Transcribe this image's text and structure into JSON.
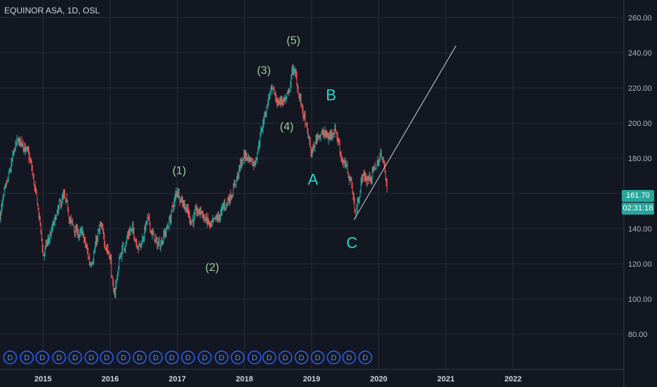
{
  "header": {
    "symbol": "EQUINOR ASA, 1D, OSL"
  },
  "price_label": {
    "last_price": "161.70",
    "countdown": "02:31:18"
  },
  "colors": {
    "background": "#131722",
    "grid": "#2a2e39",
    "up": "#26a69a",
    "down": "#ef5350",
    "wave_major": "#9ccc9c",
    "wave_corrective": "#27dacb",
    "trendline": "#d1d4dc",
    "dividend": "#2962ff"
  },
  "chart_data": {
    "type": "candlestick",
    "y_axis": {
      "ylim": [
        60,
        270
      ],
      "ticks": [
        "80.00",
        "100.00",
        "120.00",
        "140.00",
        "160.00",
        "180.00",
        "200.00",
        "220.00",
        "240.00",
        "260.00"
      ]
    },
    "x_axis": {
      "xlim": [
        2014.36,
        2023.65
      ],
      "ticks": [
        "2015",
        "2016",
        "2017",
        "2018",
        "2019",
        "2020",
        "2021",
        "2022"
      ]
    },
    "price_path": [
      {
        "t": 2014.36,
        "p": 148
      },
      {
        "t": 2014.45,
        "p": 162
      },
      {
        "t": 2014.6,
        "p": 188
      },
      {
        "t": 2014.7,
        "p": 190
      },
      {
        "t": 2014.82,
        "p": 176
      },
      {
        "t": 2014.95,
        "p": 145
      },
      {
        "t": 2015.0,
        "p": 125
      },
      {
        "t": 2015.1,
        "p": 135
      },
      {
        "t": 2015.3,
        "p": 158
      },
      {
        "t": 2015.45,
        "p": 140
      },
      {
        "t": 2015.6,
        "p": 135
      },
      {
        "t": 2015.7,
        "p": 120
      },
      {
        "t": 2015.85,
        "p": 140
      },
      {
        "t": 2016.0,
        "p": 125
      },
      {
        "t": 2016.05,
        "p": 100
      },
      {
        "t": 2016.15,
        "p": 125
      },
      {
        "t": 2016.3,
        "p": 140
      },
      {
        "t": 2016.45,
        "p": 130
      },
      {
        "t": 2016.55,
        "p": 145
      },
      {
        "t": 2016.7,
        "p": 130
      },
      {
        "t": 2016.85,
        "p": 140
      },
      {
        "t": 2017.0,
        "p": 162
      },
      {
        "t": 2017.1,
        "p": 155
      },
      {
        "t": 2017.2,
        "p": 145
      },
      {
        "t": 2017.35,
        "p": 150
      },
      {
        "t": 2017.5,
        "p": 140
      },
      {
        "t": 2017.6,
        "p": 145
      },
      {
        "t": 2017.8,
        "p": 160
      },
      {
        "t": 2018.0,
        "p": 182
      },
      {
        "t": 2018.15,
        "p": 178
      },
      {
        "t": 2018.3,
        "p": 205
      },
      {
        "t": 2018.38,
        "p": 218
      },
      {
        "t": 2018.5,
        "p": 212
      },
      {
        "t": 2018.65,
        "p": 215
      },
      {
        "t": 2018.72,
        "p": 232
      },
      {
        "t": 2018.78,
        "p": 222
      },
      {
        "t": 2018.9,
        "p": 200
      },
      {
        "t": 2019.0,
        "p": 182
      },
      {
        "t": 2019.1,
        "p": 195
      },
      {
        "t": 2019.25,
        "p": 192
      },
      {
        "t": 2019.35,
        "p": 198
      },
      {
        "t": 2019.45,
        "p": 180
      },
      {
        "t": 2019.6,
        "p": 165
      },
      {
        "t": 2019.65,
        "p": 147
      },
      {
        "t": 2019.75,
        "p": 170
      },
      {
        "t": 2019.85,
        "p": 168
      },
      {
        "t": 2019.95,
        "p": 175
      },
      {
        "t": 2020.05,
        "p": 183
      },
      {
        "t": 2020.12,
        "p": 161.7
      }
    ],
    "drawings": {
      "trendline": {
        "from": {
          "t": 2019.63,
          "p": 145
        },
        "to": {
          "t": 2021.15,
          "p": 244
        }
      },
      "waves": [
        {
          "text": "(1)",
          "t": 2017.03,
          "p": 171,
          "kind": "major"
        },
        {
          "text": "(2)",
          "t": 2017.52,
          "p": 116,
          "kind": "major"
        },
        {
          "text": "(3)",
          "t": 2018.29,
          "p": 228,
          "kind": "major"
        },
        {
          "text": "(4)",
          "t": 2018.63,
          "p": 196,
          "kind": "major"
        },
        {
          "text": "(5)",
          "t": 2018.73,
          "p": 245,
          "kind": "major"
        },
        {
          "text": "A",
          "t": 2019.02,
          "p": 165,
          "kind": "corrective"
        },
        {
          "text": "B",
          "t": 2019.29,
          "p": 213,
          "kind": "corrective"
        },
        {
          "text": "C",
          "t": 2019.6,
          "p": 129,
          "kind": "corrective"
        }
      ],
      "dividends": {
        "label": "D",
        "t": [
          2014.51,
          2014.76,
          2014.99,
          2015.24,
          2015.48,
          2015.72,
          2015.95,
          2016.2,
          2016.44,
          2016.68,
          2016.92,
          2017.16,
          2017.41,
          2017.66,
          2017.9,
          2018.15,
          2018.37,
          2018.61,
          2018.85,
          2019.09,
          2019.33,
          2019.56,
          2019.8
        ]
      }
    }
  }
}
